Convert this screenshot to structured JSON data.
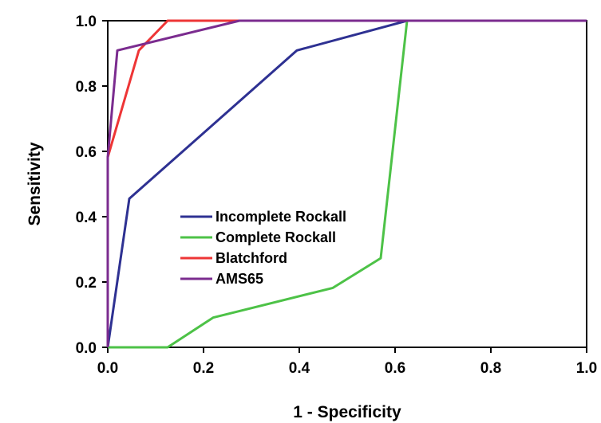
{
  "chart_data": {
    "type": "line",
    "title": "",
    "xlabel": "1 - Specificity",
    "ylabel": "Sensitivity",
    "xlim": [
      0,
      1
    ],
    "ylim": [
      0,
      1
    ],
    "xticks": [
      "0.0",
      "0.2",
      "0.4",
      "0.6",
      "0.8",
      "1.0"
    ],
    "yticks": [
      "0.0",
      "0.2",
      "0.4",
      "0.6",
      "0.8",
      "1.0"
    ],
    "grid": false,
    "legend_position": "center-left",
    "series": [
      {
        "name": "Incomplete Rockall",
        "color": "#2e3192",
        "points": [
          [
            0,
            0
          ],
          [
            0.045,
            0.455
          ],
          [
            0.395,
            0.909
          ],
          [
            0.625,
            1.0
          ],
          [
            1.0,
            1.0
          ]
        ]
      },
      {
        "name": "Complete Rockall",
        "color": "#4dc247",
        "points": [
          [
            0,
            0
          ],
          [
            0.125,
            0
          ],
          [
            0.22,
            0.091
          ],
          [
            0.47,
            0.182
          ],
          [
            0.57,
            0.273
          ],
          [
            0.625,
            1.0
          ],
          [
            1.0,
            1.0
          ]
        ]
      },
      {
        "name": "Blatchford",
        "color": "#ee3536",
        "points": [
          [
            0,
            0
          ],
          [
            0,
            0.582
          ],
          [
            0.065,
            0.909
          ],
          [
            0.125,
            1.0
          ],
          [
            1.0,
            1.0
          ]
        ]
      },
      {
        "name": "AMS65",
        "color": "#7b2c8f",
        "points": [
          [
            0,
            0
          ],
          [
            0,
            0.582
          ],
          [
            0.02,
            0.909
          ],
          [
            0.275,
            1.0
          ],
          [
            1.0,
            1.0
          ]
        ]
      }
    ]
  }
}
